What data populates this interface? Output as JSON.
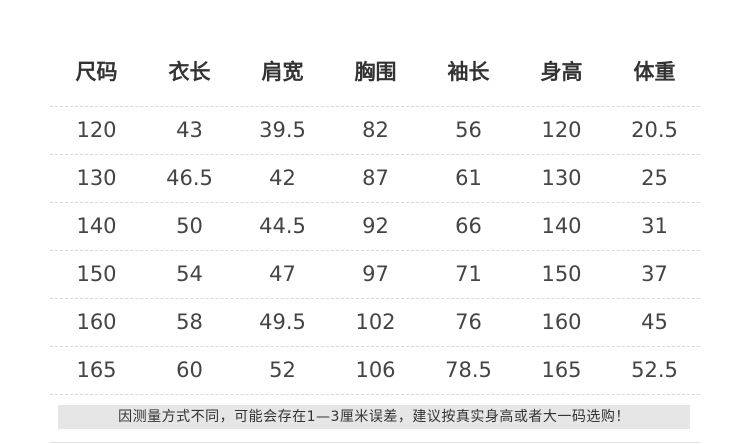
{
  "table": {
    "headers": [
      "尺码",
      "衣长",
      "肩宽",
      "胸围",
      "袖长",
      "身高",
      "体重"
    ],
    "rows": [
      [
        "120",
        "43",
        "39.5",
        "82",
        "56",
        "120",
        "20.5"
      ],
      [
        "130",
        "46.5",
        "42",
        "87",
        "61",
        "130",
        "25"
      ],
      [
        "140",
        "50",
        "44.5",
        "92",
        "66",
        "140",
        "31"
      ],
      [
        "150",
        "54",
        "47",
        "97",
        "71",
        "150",
        "37"
      ],
      [
        "160",
        "58",
        "49.5",
        "102",
        "76",
        "160",
        "45"
      ],
      [
        "165",
        "60",
        "52",
        "106",
        "78.5",
        "165",
        "52.5"
      ]
    ]
  },
  "note": "因测量方式不同，可能会存在1—3厘米误差，建议按真实身高或者大一码选购！",
  "colors": {
    "text": "#3a3a3a",
    "note_bg": "#e6e6e6",
    "divider": "#d8d8d8"
  }
}
